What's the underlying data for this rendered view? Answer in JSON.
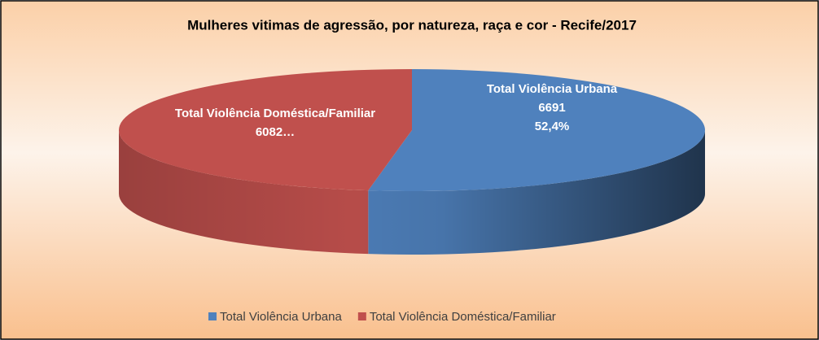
{
  "chart_data": {
    "type": "pie",
    "title": "Mulheres vitimas de agressão, por natureza, raça e cor  - Recife/2017",
    "categories": [
      "Total Violência Urbana",
      "Total Violência Doméstica/Familiar"
    ],
    "values": [
      6691,
      6082
    ],
    "value_labels": [
      "6691",
      "6082…"
    ],
    "percent_labels": [
      "52,4%",
      null
    ],
    "colors": [
      "#4f81bd",
      "#c0504d"
    ],
    "legend": "bottom"
  }
}
